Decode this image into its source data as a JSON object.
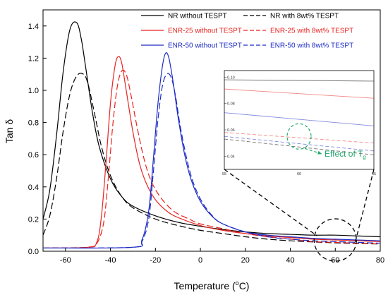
{
  "chart_data": {
    "type": "line",
    "xlabel": "Temperature (",
    "xlabel_super": "o",
    "xlabel_tail": "C)",
    "ylabel": "Tan δ",
    "xlim": [
      -70,
      80
    ],
    "ylim": [
      0.0,
      1.5
    ],
    "xticks": [
      -60,
      -40,
      -20,
      0,
      20,
      40,
      60,
      80
    ],
    "yticks": [
      0.0,
      0.2,
      0.4,
      0.6,
      0.8,
      1.0,
      1.2,
      1.4
    ],
    "legend_position": "top-right",
    "grid": false,
    "series": [
      {
        "name": "NR without TESPT",
        "color": "#000000",
        "dashed": false,
        "x": [
          -70,
          -67,
          -64,
          -61,
          -58,
          -55,
          -53,
          -51,
          -48,
          -45,
          -40,
          -35,
          -30,
          -20,
          -10,
          0,
          10,
          20,
          30,
          40,
          50,
          60,
          70,
          80
        ],
        "y": [
          0.2,
          0.38,
          0.72,
          1.12,
          1.38,
          1.42,
          1.32,
          1.14,
          0.86,
          0.65,
          0.45,
          0.34,
          0.28,
          0.22,
          0.18,
          0.155,
          0.135,
          0.12,
          0.11,
          0.105,
          0.1,
          0.1,
          0.095,
          0.09
        ]
      },
      {
        "name": "NR with 8wt% TESPT",
        "color": "#000000",
        "dashed": true,
        "x": [
          -70,
          -67,
          -64,
          -61,
          -58,
          -55,
          -52,
          -50,
          -47,
          -44,
          -40,
          -35,
          -30,
          -20,
          -10,
          0,
          10,
          20,
          30,
          40,
          50,
          60,
          70,
          80
        ],
        "y": [
          0.1,
          0.22,
          0.45,
          0.75,
          0.98,
          1.09,
          1.1,
          1.04,
          0.85,
          0.65,
          0.47,
          0.34,
          0.27,
          0.2,
          0.16,
          0.13,
          0.11,
          0.09,
          0.075,
          0.065,
          0.058,
          0.052,
          0.048,
          0.045
        ]
      },
      {
        "name": "ENR-25 without TESPT",
        "color": "#e8231f",
        "dashed": false,
        "x": [
          -70,
          -50,
          -46,
          -44,
          -42,
          -40,
          -38,
          -36.5,
          -35,
          -33,
          -30,
          -27,
          -24,
          -20,
          -15,
          -10,
          0,
          10,
          20,
          30,
          40,
          50,
          60,
          70,
          80
        ],
        "y": [
          0.02,
          0.025,
          0.06,
          0.22,
          0.55,
          0.92,
          1.15,
          1.21,
          1.17,
          1.0,
          0.74,
          0.54,
          0.42,
          0.32,
          0.25,
          0.21,
          0.16,
          0.13,
          0.11,
          0.095,
          0.085,
          0.075,
          0.07,
          0.065,
          0.06
        ]
      },
      {
        "name": "ENR-25 with 8wt% TESPT",
        "color": "#e8231f",
        "dashed": true,
        "x": [
          -70,
          -50,
          -46,
          -43,
          -41,
          -39,
          -37,
          -35,
          -33,
          -31,
          -28,
          -25,
          -22,
          -18,
          -12,
          -5,
          0,
          10,
          20,
          30,
          40,
          50,
          60,
          70,
          80
        ],
        "y": [
          0.02,
          0.025,
          0.05,
          0.18,
          0.45,
          0.78,
          1.02,
          1.12,
          1.1,
          0.98,
          0.76,
          0.57,
          0.44,
          0.34,
          0.25,
          0.2,
          0.17,
          0.14,
          0.11,
          0.09,
          0.075,
          0.06,
          0.055,
          0.05,
          0.045
        ]
      },
      {
        "name": "ENR-50 without TESPT",
        "color": "#1c2bc4",
        "dashed": false,
        "x": [
          -70,
          -30,
          -26,
          -23,
          -21,
          -19,
          -17,
          -15.5,
          -14,
          -12,
          -10,
          -7,
          -4,
          0,
          5,
          10,
          20,
          30,
          40,
          50,
          60,
          70,
          80
        ],
        "y": [
          0.02,
          0.025,
          0.07,
          0.25,
          0.56,
          0.9,
          1.14,
          1.23,
          1.2,
          1.04,
          0.84,
          0.6,
          0.44,
          0.31,
          0.22,
          0.17,
          0.12,
          0.1,
          0.09,
          0.08,
          0.075,
          0.07,
          0.065
        ]
      },
      {
        "name": "ENR-50 with 8wt% TESPT",
        "color": "#1c2bc4",
        "dashed": true,
        "x": [
          -70,
          -30,
          -26,
          -23,
          -21,
          -19,
          -17,
          -15,
          -13,
          -11,
          -9,
          -6,
          -3,
          1,
          6,
          10,
          20,
          30,
          40,
          50,
          60,
          70,
          80
        ],
        "y": [
          0.02,
          0.025,
          0.06,
          0.2,
          0.48,
          0.8,
          1.02,
          1.1,
          1.08,
          0.96,
          0.78,
          0.57,
          0.42,
          0.3,
          0.21,
          0.17,
          0.12,
          0.09,
          0.075,
          0.065,
          0.06,
          0.055,
          0.05
        ]
      }
    ],
    "inset": {
      "xlim": [
        55,
        65
      ],
      "ylim": [
        0.03,
        0.105
      ],
      "xticks": [
        55,
        60,
        65
      ],
      "yticks": [
        0.04,
        0.06,
        0.08,
        0.1
      ],
      "tick_labels_x": [
        "55",
        "60",
        "65"
      ],
      "tick_labels_y": [
        "0.04",
        "0.06",
        "0.08",
        "0.10"
      ],
      "series": [
        {
          "color": "#000000",
          "dashed": false,
          "x": [
            55,
            65
          ],
          "y": [
            0.098,
            0.097
          ]
        },
        {
          "color": "#e8231f",
          "dashed": false,
          "x": [
            55,
            65
          ],
          "y": [
            0.091,
            0.084
          ]
        },
        {
          "color": "#1c2bc4",
          "dashed": false,
          "x": [
            55,
            65
          ],
          "y": [
            0.073,
            0.063
          ]
        },
        {
          "color": "#e8231f",
          "dashed": true,
          "x": [
            55,
            65
          ],
          "y": [
            0.058,
            0.05
          ]
        },
        {
          "color": "#1c2bc4",
          "dashed": true,
          "x": [
            55,
            65
          ],
          "y": [
            0.055,
            0.044
          ]
        },
        {
          "color": "#000000",
          "dashed": true,
          "x": [
            55,
            65
          ],
          "y": [
            0.053,
            0.041
          ]
        }
      ],
      "annotation": "Effect of T",
      "annotation_sub": "g",
      "annotation_color": "#1fa86a"
    },
    "zoom_region": {
      "x": 60,
      "y": 0.07
    }
  }
}
